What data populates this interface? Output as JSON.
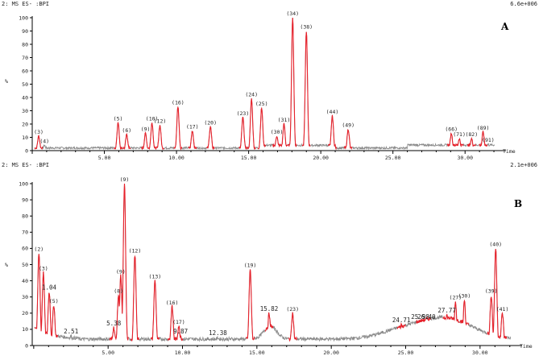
{
  "colors": {
    "baseline": "#8a8a8a",
    "peak": "#e8202a",
    "axis": "#000000"
  },
  "chart_data": [
    {
      "type": "line",
      "panel": "A",
      "header_left": "2: MS ES- :BPI",
      "header_right": "6.6e+006",
      "xlabel": "Time",
      "ylabel": "%",
      "xlim": [
        0,
        32.5
      ],
      "ylim": [
        0,
        100
      ],
      "x_ticks": [
        "5.00",
        "10.00",
        "15.00",
        "20.00",
        "25.00",
        "30.00"
      ],
      "y_ticks": [
        "0",
        "10",
        "20",
        "30",
        "40",
        "50",
        "60",
        "70",
        "80",
        "90",
        "100"
      ],
      "peaks": [
        {
          "label": "(3)",
          "x": 0.45,
          "y": 11
        },
        {
          "label": "(4)",
          "x": 0.85,
          "y": 4
        },
        {
          "label": "(5)",
          "x": 5.95,
          "y": 21
        },
        {
          "label": "(6)",
          "x": 6.55,
          "y": 12
        },
        {
          "label": "(9)",
          "x": 7.85,
          "y": 13
        },
        {
          "label": "(10)",
          "x": 8.3,
          "y": 21
        },
        {
          "label": "(12)",
          "x": 8.85,
          "y": 19
        },
        {
          "label": "(16)",
          "x": 10.1,
          "y": 33
        },
        {
          "label": "(17)",
          "x": 11.1,
          "y": 15
        },
        {
          "label": "(20)",
          "x": 12.35,
          "y": 18
        },
        {
          "label": "(23)",
          "x": 14.6,
          "y": 25
        },
        {
          "label": "(24)",
          "x": 15.2,
          "y": 39
        },
        {
          "label": "(25)",
          "x": 15.9,
          "y": 32
        },
        {
          "label": "(30)",
          "x": 16.95,
          "y": 11
        },
        {
          "label": "(31)",
          "x": 17.45,
          "y": 20
        },
        {
          "label": "(34)",
          "x": 18.05,
          "y": 100
        },
        {
          "label": "(38)",
          "x": 19.0,
          "y": 90
        },
        {
          "label": "(44)",
          "x": 20.8,
          "y": 26
        },
        {
          "label": "(49)",
          "x": 21.9,
          "y": 16
        },
        {
          "label": "(66)",
          "x": 29.05,
          "y": 13
        },
        {
          "label": "(71)",
          "x": 29.6,
          "y": 9
        },
        {
          "label": "(82)",
          "x": 30.45,
          "y": 9
        },
        {
          "label": "(89)",
          "x": 31.25,
          "y": 14
        },
        {
          "label": "(91)",
          "x": 31.6,
          "y": 5
        }
      ]
    },
    {
      "type": "line",
      "panel": "B",
      "header_left": "2: MS ES- :BPI",
      "header_right": "2.1e+006",
      "xlabel": "Time",
      "ylabel": "%",
      "xlim": [
        -0.1,
        32.5
      ],
      "ylim": [
        0,
        100
      ],
      "x_ticks": [
        "5.00",
        "10.00",
        "15.00",
        "20.00",
        "25.00",
        "30.00"
      ],
      "y_ticks": [
        "0",
        "10",
        "20",
        "30",
        "40",
        "50",
        "60",
        "70",
        "80",
        "90",
        "100"
      ],
      "peaks": [
        {
          "label": "(2)",
          "x": 0.35,
          "y": 57
        },
        {
          "label": "(3)",
          "x": 0.65,
          "y": 45
        },
        {
          "label": "1.04",
          "x": 1.04,
          "y": 33
        },
        {
          "label": "(5)",
          "x": 1.35,
          "y": 25
        },
        {
          "label": "2.51",
          "x": 2.51,
          "y": 6
        },
        {
          "label": "5.38",
          "x": 5.38,
          "y": 11
        },
        {
          "label": "(8)",
          "x": 5.7,
          "y": 31
        },
        {
          "label": "(9)",
          "x": 5.85,
          "y": 43
        },
        {
          "label": "(9)",
          "x": 6.1,
          "y": 100
        },
        {
          "label": "(12)",
          "x": 6.8,
          "y": 56
        },
        {
          "label": "(13)",
          "x": 8.15,
          "y": 40
        },
        {
          "label": "(16)",
          "x": 9.3,
          "y": 24
        },
        {
          "label": "(17)",
          "x": 9.75,
          "y": 12
        },
        {
          "label": "9.87",
          "x": 9.87,
          "y": 6
        },
        {
          "label": "12.38",
          "x": 12.38,
          "y": 5
        },
        {
          "label": "(19)",
          "x": 14.55,
          "y": 47
        },
        {
          "label": "15.82",
          "x": 15.82,
          "y": 20
        },
        {
          "label": "(23)",
          "x": 17.4,
          "y": 20
        },
        {
          "label": "24.71",
          "x": 24.71,
          "y": 13
        },
        {
          "label": "25.98",
          "x": 25.98,
          "y": 15
        },
        {
          "label": "26.40",
          "x": 26.4,
          "y": 15
        },
        {
          "label": "(27)",
          "x": 28.35,
          "y": 27
        },
        {
          "label": "27.77",
          "x": 27.77,
          "y": 19
        },
        {
          "label": "(30)",
          "x": 28.95,
          "y": 28
        },
        {
          "label": "(39)",
          "x": 30.75,
          "y": 31
        },
        {
          "label": "(40)",
          "x": 31.05,
          "y": 60
        },
        {
          "label": "(41)",
          "x": 31.5,
          "y": 20
        }
      ]
    }
  ]
}
